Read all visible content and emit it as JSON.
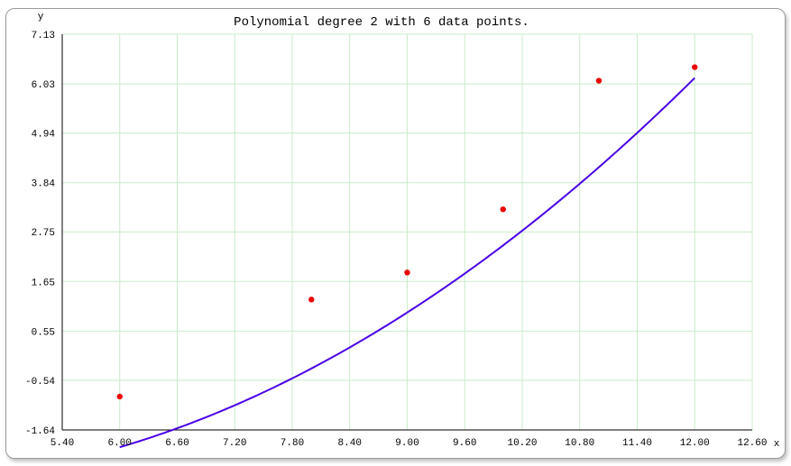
{
  "chart_data": {
    "type": "scatter",
    "title": "Polynomial degree 2 with 6 data points.",
    "xlabel": "x",
    "ylabel": "y",
    "xlim": [
      5.4,
      12.6
    ],
    "ylim": [
      -1.64,
      7.13
    ],
    "x_ticks": [
      "5.40",
      "6.00",
      "6.60",
      "7.20",
      "7.80",
      "8.40",
      "9.00",
      "9.60",
      "10.20",
      "10.80",
      "11.40",
      "12.00",
      "12.60"
    ],
    "y_ticks": [
      "7.13",
      "6.03",
      "4.94",
      "3.84",
      "2.75",
      "1.65",
      "0.55",
      "-0.54",
      "-1.64"
    ],
    "grid": true,
    "series": [
      {
        "kind": "points",
        "color": "#ee0000",
        "x": [
          6.0,
          8.0,
          9.0,
          10.0,
          11.0,
          12.0
        ],
        "y": [
          -0.9,
          1.25,
          1.85,
          3.25,
          6.1,
          6.4
        ]
      },
      {
        "kind": "fit-curve",
        "color": "#4a00e6",
        "coefficients": [
          -1.35,
          -0.85,
          0.123
        ],
        "x_range": [
          6.0,
          12.0
        ]
      }
    ],
    "grid_color": "#c9ecc9"
  }
}
